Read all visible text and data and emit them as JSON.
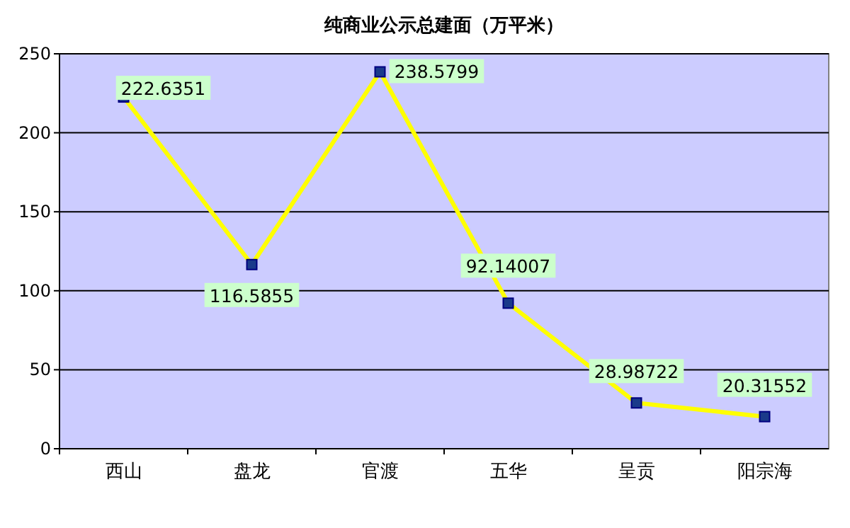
{
  "chart_data": {
    "type": "line",
    "title": "纯商业公示总建面（万平米）",
    "categories": [
      "西山",
      "盘龙",
      "官渡",
      "五华",
      "呈贡",
      "阳宗海"
    ],
    "series": [
      {
        "color": "#ffff00",
        "values": [
          222.6351,
          116.5855,
          238.5799,
          92.14007,
          28.98722,
          20.31552
        ]
      }
    ],
    "ylim": [
      0,
      250
    ],
    "yticks": [
      0,
      50,
      100,
      150,
      200,
      250
    ],
    "grid": "y",
    "marker": "square",
    "data_labels": true
  }
}
